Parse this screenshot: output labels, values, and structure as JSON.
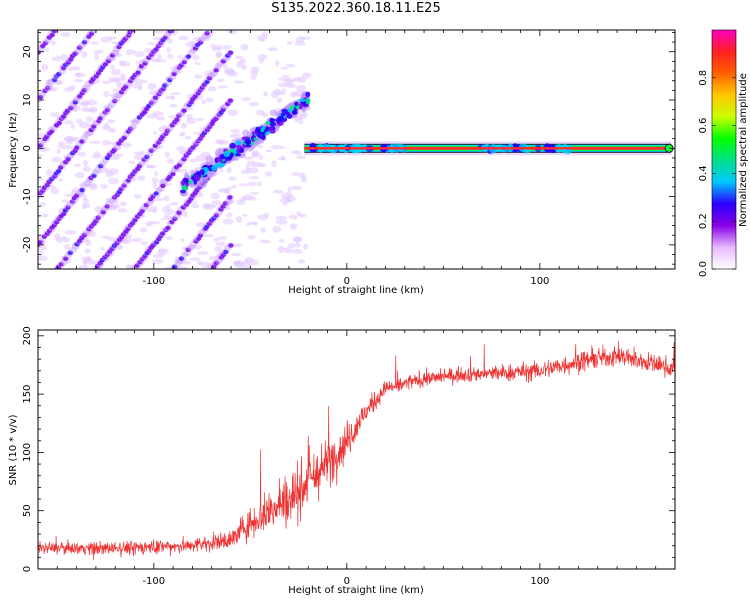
{
  "title": "S135.2022.360.18.11.E25",
  "chart_data": [
    {
      "type": "heatmap",
      "xlabel": "Height of straight line (km)",
      "ylabel": "Frequency (Hz)",
      "xlim": [
        -160,
        170
      ],
      "ylim": [
        -25,
        24.5
      ],
      "xticks": [
        -100,
        0,
        100
      ],
      "yticks": [
        -20,
        -10,
        0,
        10,
        20
      ],
      "colorbar": {
        "label": "Normalized spectral amplitude",
        "range": [
          0,
          1
        ],
        "ticks": [
          "0.0",
          "0.2",
          "0.4",
          "0.6",
          "0.8"
        ],
        "colors": [
          "#ffffff",
          "#e7b8ff",
          "#8a00e6",
          "#2a00ff",
          "#00c8ff",
          "#00e08a",
          "#00ff00",
          "#c8ff00",
          "#ffc800",
          "#ff6000",
          "#ff2020",
          "#ff00c0"
        ]
      },
      "features": {
        "carrier": {
          "x_start": -22,
          "x_end": 168,
          "frequency": 0
        },
        "diagonal_bands": {
          "slope_hz_per_km": 0.5,
          "spacing_hz": 10,
          "x_start": -160,
          "x_end": -60
        }
      }
    },
    {
      "type": "line",
      "xlabel": "Height of straight line (km)",
      "ylabel": "SNR (10 * v/v)",
      "xlim": [
        -160,
        170
      ],
      "ylim": [
        0,
        205
      ],
      "xticks": [
        -100,
        0,
        100
      ],
      "yticks": [
        0,
        50,
        100,
        150,
        200
      ],
      "color": "#ee3333",
      "envelope": {
        "x": [
          -160,
          -120,
          -80,
          -60,
          -50,
          -40,
          -30,
          -20,
          -10,
          0,
          10,
          20,
          40,
          60,
          80,
          100,
          120,
          140,
          170
        ],
        "mean": [
          18,
          18,
          20,
          25,
          40,
          50,
          60,
          75,
          90,
          110,
          135,
          155,
          163,
          167,
          168,
          170,
          178,
          183,
          172
        ],
        "spread": [
          6,
          7,
          8,
          10,
          18,
          22,
          28,
          30,
          25,
          20,
          12,
          8,
          8,
          8,
          9,
          10,
          11,
          11,
          10
        ]
      }
    }
  ]
}
